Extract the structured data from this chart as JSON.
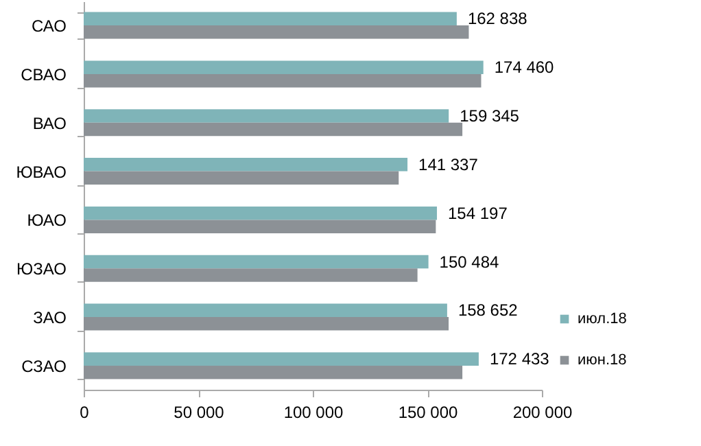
{
  "chart_data": {
    "type": "bar",
    "orientation": "horizontal",
    "categories": [
      "САО",
      "СВАО",
      "ВАО",
      "ЮВАО",
      "ЮАО",
      "ЮЗАО",
      "ЗАО",
      "СЗАО"
    ],
    "series": [
      {
        "name": "июл.18",
        "color": "#7fb4b8",
        "values": [
          162838,
          174460,
          159345,
          141337,
          154197,
          150484,
          158652,
          172433
        ],
        "value_labels": [
          "162 838",
          "174 460",
          "159 345",
          "141 337",
          "154 197",
          "150 484",
          "158 652",
          "172 433"
        ]
      },
      {
        "name": "июн.18",
        "color": "#8c9196",
        "values": [
          168100,
          173500,
          165300,
          137500,
          153700,
          145700,
          159300,
          165300
        ]
      }
    ],
    "xlim": [
      0,
      200000
    ],
    "xticks": [
      {
        "value": 0,
        "label": "0"
      },
      {
        "value": 50000,
        "label": "50 000"
      },
      {
        "value": 100000,
        "label": "100 000"
      },
      {
        "value": 150000,
        "label": "150 000"
      },
      {
        "value": 200000,
        "label": "200 000"
      }
    ],
    "grid": false,
    "legend": "right"
  }
}
